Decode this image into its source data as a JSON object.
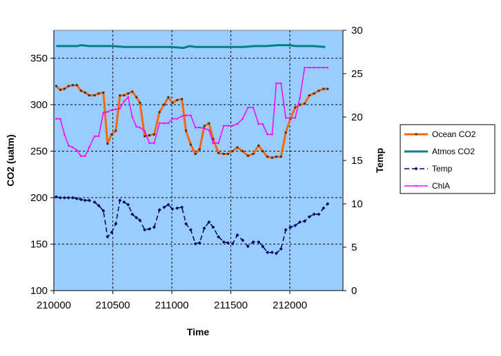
{
  "chart_data": {
    "type": "line",
    "title": "",
    "xlabel": "Time",
    "ylabel": "CO2 (uatm)",
    "y2label": "Temp",
    "xlim": [
      210000,
      212450
    ],
    "ylim": [
      100,
      380
    ],
    "y2lim": [
      0,
      30
    ],
    "x_ticks": [
      210000,
      210500,
      211000,
      211500,
      212000
    ],
    "y_ticks": [
      100,
      150,
      200,
      250,
      300,
      350
    ],
    "y2_ticks": [
      0,
      5,
      10,
      15,
      20,
      25,
      30
    ],
    "grid": true,
    "legend_position": "right",
    "colors": {
      "plot_background": "#99ccff"
    },
    "series": [
      {
        "name": "Ocean CO2",
        "axis": "left",
        "color": "#ff6600",
        "x": [
          210020,
          210055,
          210090,
          210125,
          210160,
          210195,
          210230,
          210265,
          210300,
          210345,
          210380,
          210420,
          210455,
          210490,
          210525,
          210560,
          210595,
          210630,
          210665,
          210700,
          210730,
          210770,
          210810,
          210850,
          210895,
          210935,
          210970,
          211005,
          211045,
          211085,
          211120,
          211160,
          211200,
          211235,
          211275,
          211315,
          211350,
          211395,
          211440,
          211475,
          211515,
          211555,
          211600,
          211645,
          211690,
          211735,
          211770,
          211810,
          211850,
          211885,
          211925,
          211965,
          212005,
          212045,
          212085,
          212125,
          212165,
          212205,
          212245,
          212285,
          212320
        ],
        "values": [
          320,
          316,
          317,
          320,
          321,
          321,
          315,
          313,
          310,
          310,
          312,
          313,
          258,
          268,
          272,
          310,
          310,
          312,
          314,
          308,
          302,
          266,
          267,
          268,
          292,
          300,
          308,
          302,
          305,
          306,
          272,
          257,
          247,
          252,
          277,
          280,
          263,
          248,
          247,
          247,
          250,
          254,
          250,
          245,
          247,
          256,
          250,
          244,
          243,
          244,
          244,
          270,
          285,
          297,
          300,
          301,
          310,
          312,
          315,
          317,
          317
        ]
      },
      {
        "name": "Atmos CO2",
        "axis": "left",
        "color": "#008080",
        "x": [
          210020,
          210100,
          210200,
          210230,
          210300,
          210400,
          210500,
          210600,
          210700,
          210800,
          210900,
          211000,
          211100,
          211150,
          211200,
          211300,
          211400,
          211500,
          211600,
          211700,
          211800,
          211900,
          212000,
          212050,
          212100,
          212200,
          212300
        ],
        "values": [
          363,
          363,
          363,
          364,
          363,
          363,
          363,
          362,
          362,
          362,
          362,
          362,
          361,
          363,
          362,
          362,
          362,
          362,
          362,
          363,
          363,
          364,
          364,
          363,
          363,
          363,
          362
        ]
      },
      {
        "name": "Temp",
        "axis": "right",
        "color": "#000066",
        "x": [
          210020,
          210055,
          210090,
          210125,
          210160,
          210195,
          210230,
          210265,
          210300,
          210345,
          210380,
          210420,
          210455,
          210490,
          210525,
          210560,
          210595,
          210630,
          210665,
          210700,
          210730,
          210770,
          210810,
          210850,
          210895,
          210935,
          210970,
          211005,
          211045,
          211085,
          211120,
          211160,
          211200,
          211235,
          211275,
          211315,
          211350,
          211395,
          211440,
          211475,
          211515,
          211555,
          211600,
          211645,
          211690,
          211735,
          211770,
          211810,
          211850,
          211885,
          211925,
          211965,
          212005,
          212045,
          212085,
          212125,
          212165,
          212205,
          212245,
          212285,
          212320
        ],
        "values": [
          10.8,
          10.7,
          10.7,
          10.7,
          10.7,
          10.6,
          10.5,
          10.4,
          10.4,
          10.2,
          9.8,
          9.2,
          6.2,
          6.7,
          7.7,
          10.4,
          10.2,
          9.9,
          8.8,
          8.4,
          8.1,
          7.0,
          7.1,
          7.3,
          9.3,
          9.6,
          9.9,
          9.4,
          9.5,
          9.6,
          7.7,
          7.0,
          5.4,
          5.5,
          7.2,
          7.9,
          7.3,
          6.2,
          5.6,
          5.5,
          5.4,
          6.4,
          5.8,
          5.1,
          5.6,
          5.6,
          5.1,
          4.4,
          4.4,
          4.3,
          4.8,
          7.0,
          7.3,
          7.5,
          7.9,
          8.0,
          8.5,
          8.8,
          8.8,
          9.5,
          10.0
        ]
      },
      {
        "name": "ChlA",
        "axis": "right",
        "color": "#ff00ff",
        "x": [
          210020,
          210055,
          210090,
          210125,
          210160,
          210195,
          210230,
          210265,
          210300,
          210345,
          210380,
          210420,
          210455,
          210490,
          210525,
          210560,
          210595,
          210630,
          210665,
          210700,
          210730,
          210770,
          210810,
          210850,
          210895,
          210935,
          210970,
          211005,
          211045,
          211085,
          211120,
          211160,
          211200,
          211235,
          211275,
          211315,
          211350,
          211395,
          211440,
          211475,
          211515,
          211555,
          211600,
          211645,
          211690,
          211735,
          211770,
          211810,
          211850,
          211885,
          211925,
          211965,
          212005,
          212045,
          212085,
          212125,
          212165,
          212205,
          212245,
          212285,
          212320
        ],
        "values": [
          19.8,
          19.8,
          18.0,
          16.7,
          16.5,
          16.2,
          15.5,
          15.5,
          16.5,
          17.8,
          17.8,
          20.5,
          20.6,
          20.8,
          20.9,
          21.0,
          21.8,
          22.3,
          20.0,
          18.9,
          18.8,
          18.4,
          17.0,
          17.0,
          19.3,
          19.3,
          19.3,
          19.8,
          19.8,
          20.1,
          20.2,
          20.2,
          18.8,
          18.8,
          18.7,
          18.5,
          17.0,
          17.0,
          19.0,
          19.0,
          19.0,
          19.2,
          19.8,
          21.1,
          21.1,
          19.2,
          19.2,
          18.0,
          18.0,
          23.9,
          23.9,
          19.9,
          19.9,
          19.9,
          22.2,
          25.7,
          25.7,
          25.7,
          25.7,
          25.7,
          25.7
        ]
      }
    ]
  }
}
